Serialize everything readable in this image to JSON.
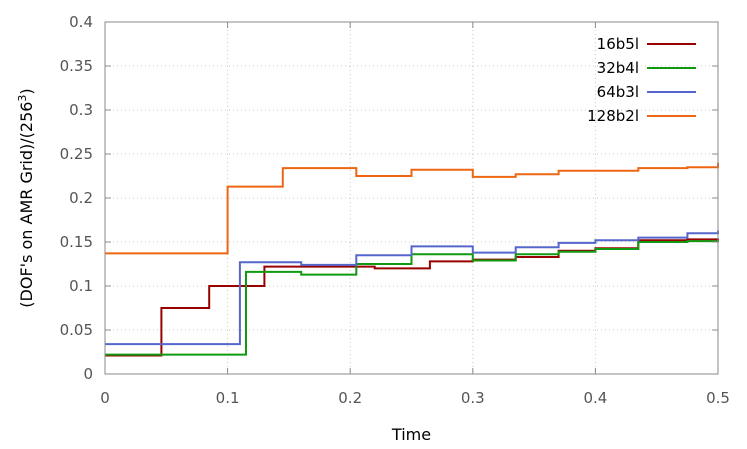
{
  "chart_data": {
    "type": "line",
    "step": true,
    "xlabel": "Time",
    "ylabel": "(DOF's on AMR Grid)/(256",
    "ylabel_superscript": "3",
    "ylabel_suffix": ")",
    "xlim": [
      0,
      0.5
    ],
    "ylim": [
      0,
      0.4
    ],
    "x_ticks": [
      "0",
      "0.1",
      "0.2",
      "0.3",
      "0.4",
      "0.5"
    ],
    "y_ticks": [
      "0",
      "0.05",
      "0.1",
      "0.15",
      "0.2",
      "0.25",
      "0.3",
      "0.35",
      "0.4"
    ],
    "grid": true,
    "legend_position": "top-right",
    "series": [
      {
        "name": "16b5l",
        "color": "#990000",
        "x": [
          0,
          0.046,
          0.085,
          0.13,
          0.22,
          0.265,
          0.3,
          0.335,
          0.37,
          0.4,
          0.435,
          0.475,
          0.5
        ],
        "y": [
          0.021,
          0.075,
          0.1,
          0.122,
          0.12,
          0.128,
          0.13,
          0.133,
          0.14,
          0.143,
          0.152,
          0.153,
          0.154
        ]
      },
      {
        "name": "32b4l",
        "color": "#119911",
        "x": [
          0,
          0.115,
          0.16,
          0.205,
          0.25,
          0.3,
          0.335,
          0.37,
          0.4,
          0.435,
          0.475,
          0.5
        ],
        "y": [
          0.022,
          0.116,
          0.113,
          0.125,
          0.136,
          0.129,
          0.136,
          0.139,
          0.142,
          0.15,
          0.151,
          0.152
        ]
      },
      {
        "name": "64b3l",
        "color": "#5566cc",
        "x": [
          0,
          0.11,
          0.16,
          0.205,
          0.25,
          0.3,
          0.335,
          0.37,
          0.4,
          0.435,
          0.475,
          0.5
        ],
        "y": [
          0.034,
          0.127,
          0.124,
          0.135,
          0.145,
          0.138,
          0.144,
          0.149,
          0.152,
          0.155,
          0.16,
          0.163
        ]
      },
      {
        "name": "128b2l",
        "color": "#ee6611",
        "x": [
          0,
          0.1,
          0.145,
          0.205,
          0.25,
          0.3,
          0.335,
          0.37,
          0.4,
          0.435,
          0.475,
          0.5
        ],
        "y": [
          0.137,
          0.213,
          0.234,
          0.225,
          0.232,
          0.224,
          0.227,
          0.231,
          0.231,
          0.234,
          0.235,
          0.24
        ]
      }
    ]
  }
}
